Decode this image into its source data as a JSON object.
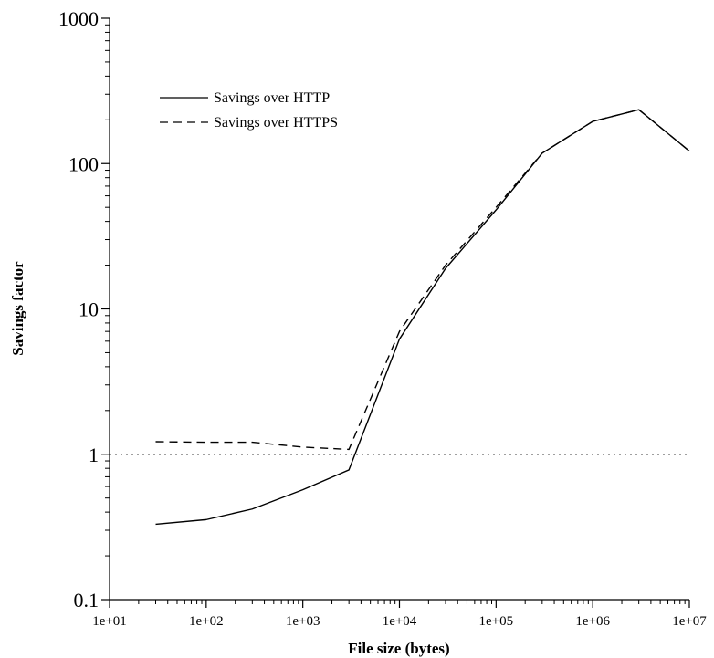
{
  "chart_data": {
    "type": "line",
    "title": "",
    "xlabel": "File size (bytes)",
    "ylabel": "Savings factor",
    "x_scale": "log",
    "y_scale": "log",
    "xlim": [
      10,
      10000000
    ],
    "ylim": [
      0.1,
      1000
    ],
    "x_ticks": [
      10,
      100,
      1000,
      10000,
      100000,
      1000000,
      10000000
    ],
    "x_tick_labels": [
      "1e+01",
      "1e+02",
      "1e+03",
      "1e+04",
      "1e+05",
      "1e+06",
      "1e+07"
    ],
    "y_ticks": [
      0.1,
      1,
      10,
      100,
      1000
    ],
    "y_tick_labels": [
      "0.1",
      "1",
      "10",
      "100",
      "1000"
    ],
    "grid": false,
    "legend_position": "top-left",
    "x": [
      30,
      100,
      300,
      1000,
      3000,
      10000,
      30000,
      100000,
      300000,
      1000000,
      3000000,
      10000000
    ],
    "series": [
      {
        "name": "Savings over HTTP",
        "line_style": "solid",
        "values": [
          0.33,
          0.355,
          0.42,
          0.57,
          0.78,
          6.2,
          19,
          48,
          118,
          195,
          235,
          122
        ]
      },
      {
        "name": "Savings over HTTPS",
        "line_style": "dashed",
        "values": [
          1.22,
          1.21,
          1.21,
          1.12,
          1.08,
          7,
          20,
          50,
          118,
          195,
          235,
          122
        ]
      }
    ],
    "reference_lines": [
      {
        "axis": "y",
        "value": 1,
        "line_style": "dotted"
      }
    ]
  }
}
